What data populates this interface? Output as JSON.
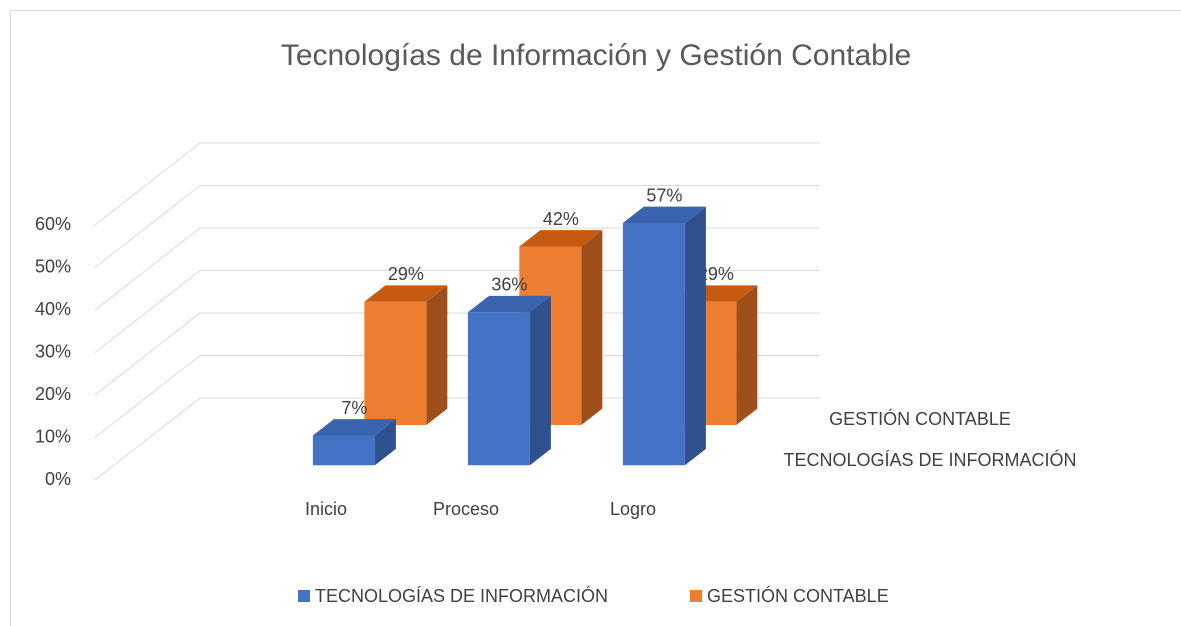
{
  "chart_data": {
    "type": "bar3d",
    "title": "Tecnologías de  Información y  Gestión Contable",
    "categories": [
      "Inicio",
      "Proceso",
      "Logro"
    ],
    "series": [
      {
        "name": "TECNOLOGÍAS DE INFORMACIÓN",
        "color": "#4472c4",
        "values": [
          7,
          36,
          57
        ],
        "value_labels": [
          "7%",
          "36%",
          "57%"
        ]
      },
      {
        "name": "GESTIÓN CONTABLE",
        "color": "#ed7d31",
        "values": [
          29,
          42,
          29
        ],
        "value_labels": [
          "29%",
          "42%",
          "29%"
        ]
      }
    ],
    "ylim": [
      0,
      60
    ],
    "yticks": [
      {
        "value": 0,
        "label": "0%"
      },
      {
        "value": 10,
        "label": "10%"
      },
      {
        "value": 20,
        "label": "20%"
      },
      {
        "value": 30,
        "label": "30%"
      },
      {
        "value": 40,
        "label": "40%"
      },
      {
        "value": 50,
        "label": "50%"
      },
      {
        "value": 60,
        "label": "60%"
      }
    ],
    "grid": true,
    "legend": "bottom"
  }
}
